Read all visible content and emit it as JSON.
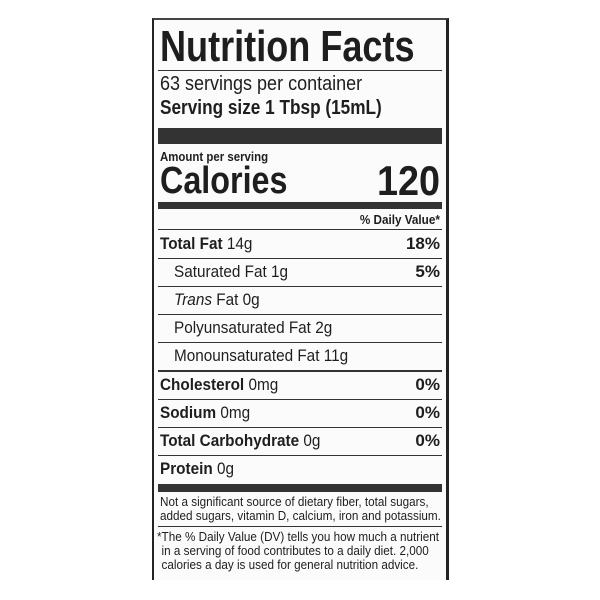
{
  "title": "Nutrition Facts",
  "servings_per_container": "63 servings per container",
  "serving_size": {
    "label": "Serving size",
    "value": "1 Tbsp (15mL)"
  },
  "amount_per_serving": "Amount per serving",
  "calories": {
    "label": "Calories",
    "value": "120"
  },
  "daily_value_header": "% Daily Value*",
  "nutrients": [
    {
      "name": "Total Fat",
      "amount": "14g",
      "dv": "18%"
    },
    {
      "name": "Saturated Fat",
      "amount": "1g",
      "dv": "5%"
    },
    {
      "name": "Trans",
      "suffix": "Fat",
      "amount": "0g",
      "dv": ""
    },
    {
      "name": "Polyunsaturated Fat",
      "amount": "2g",
      "dv": ""
    },
    {
      "name": "Monounsaturated Fat",
      "amount": "11g",
      "dv": ""
    },
    {
      "name": "Cholesterol",
      "amount": "0mg",
      "dv": "0%"
    },
    {
      "name": "Sodium",
      "amount": "0mg",
      "dv": "0%"
    },
    {
      "name": "Total Carbohydrate",
      "amount": "0g",
      "dv": "0%"
    },
    {
      "name": "Protein",
      "amount": "0g",
      "dv": ""
    }
  ],
  "footnotes": {
    "not_significant": [
      "Not a significant source of dietary fiber, total sugars,",
      "added sugars, vitamin D, calcium, iron and potassium."
    ],
    "dv_explanation": [
      "*The % Daily Value (DV) tells you how much a nutrient",
      "in a serving of food contributes to a daily diet. 2,000",
      "calories a day is used for general nutrition advice."
    ]
  }
}
